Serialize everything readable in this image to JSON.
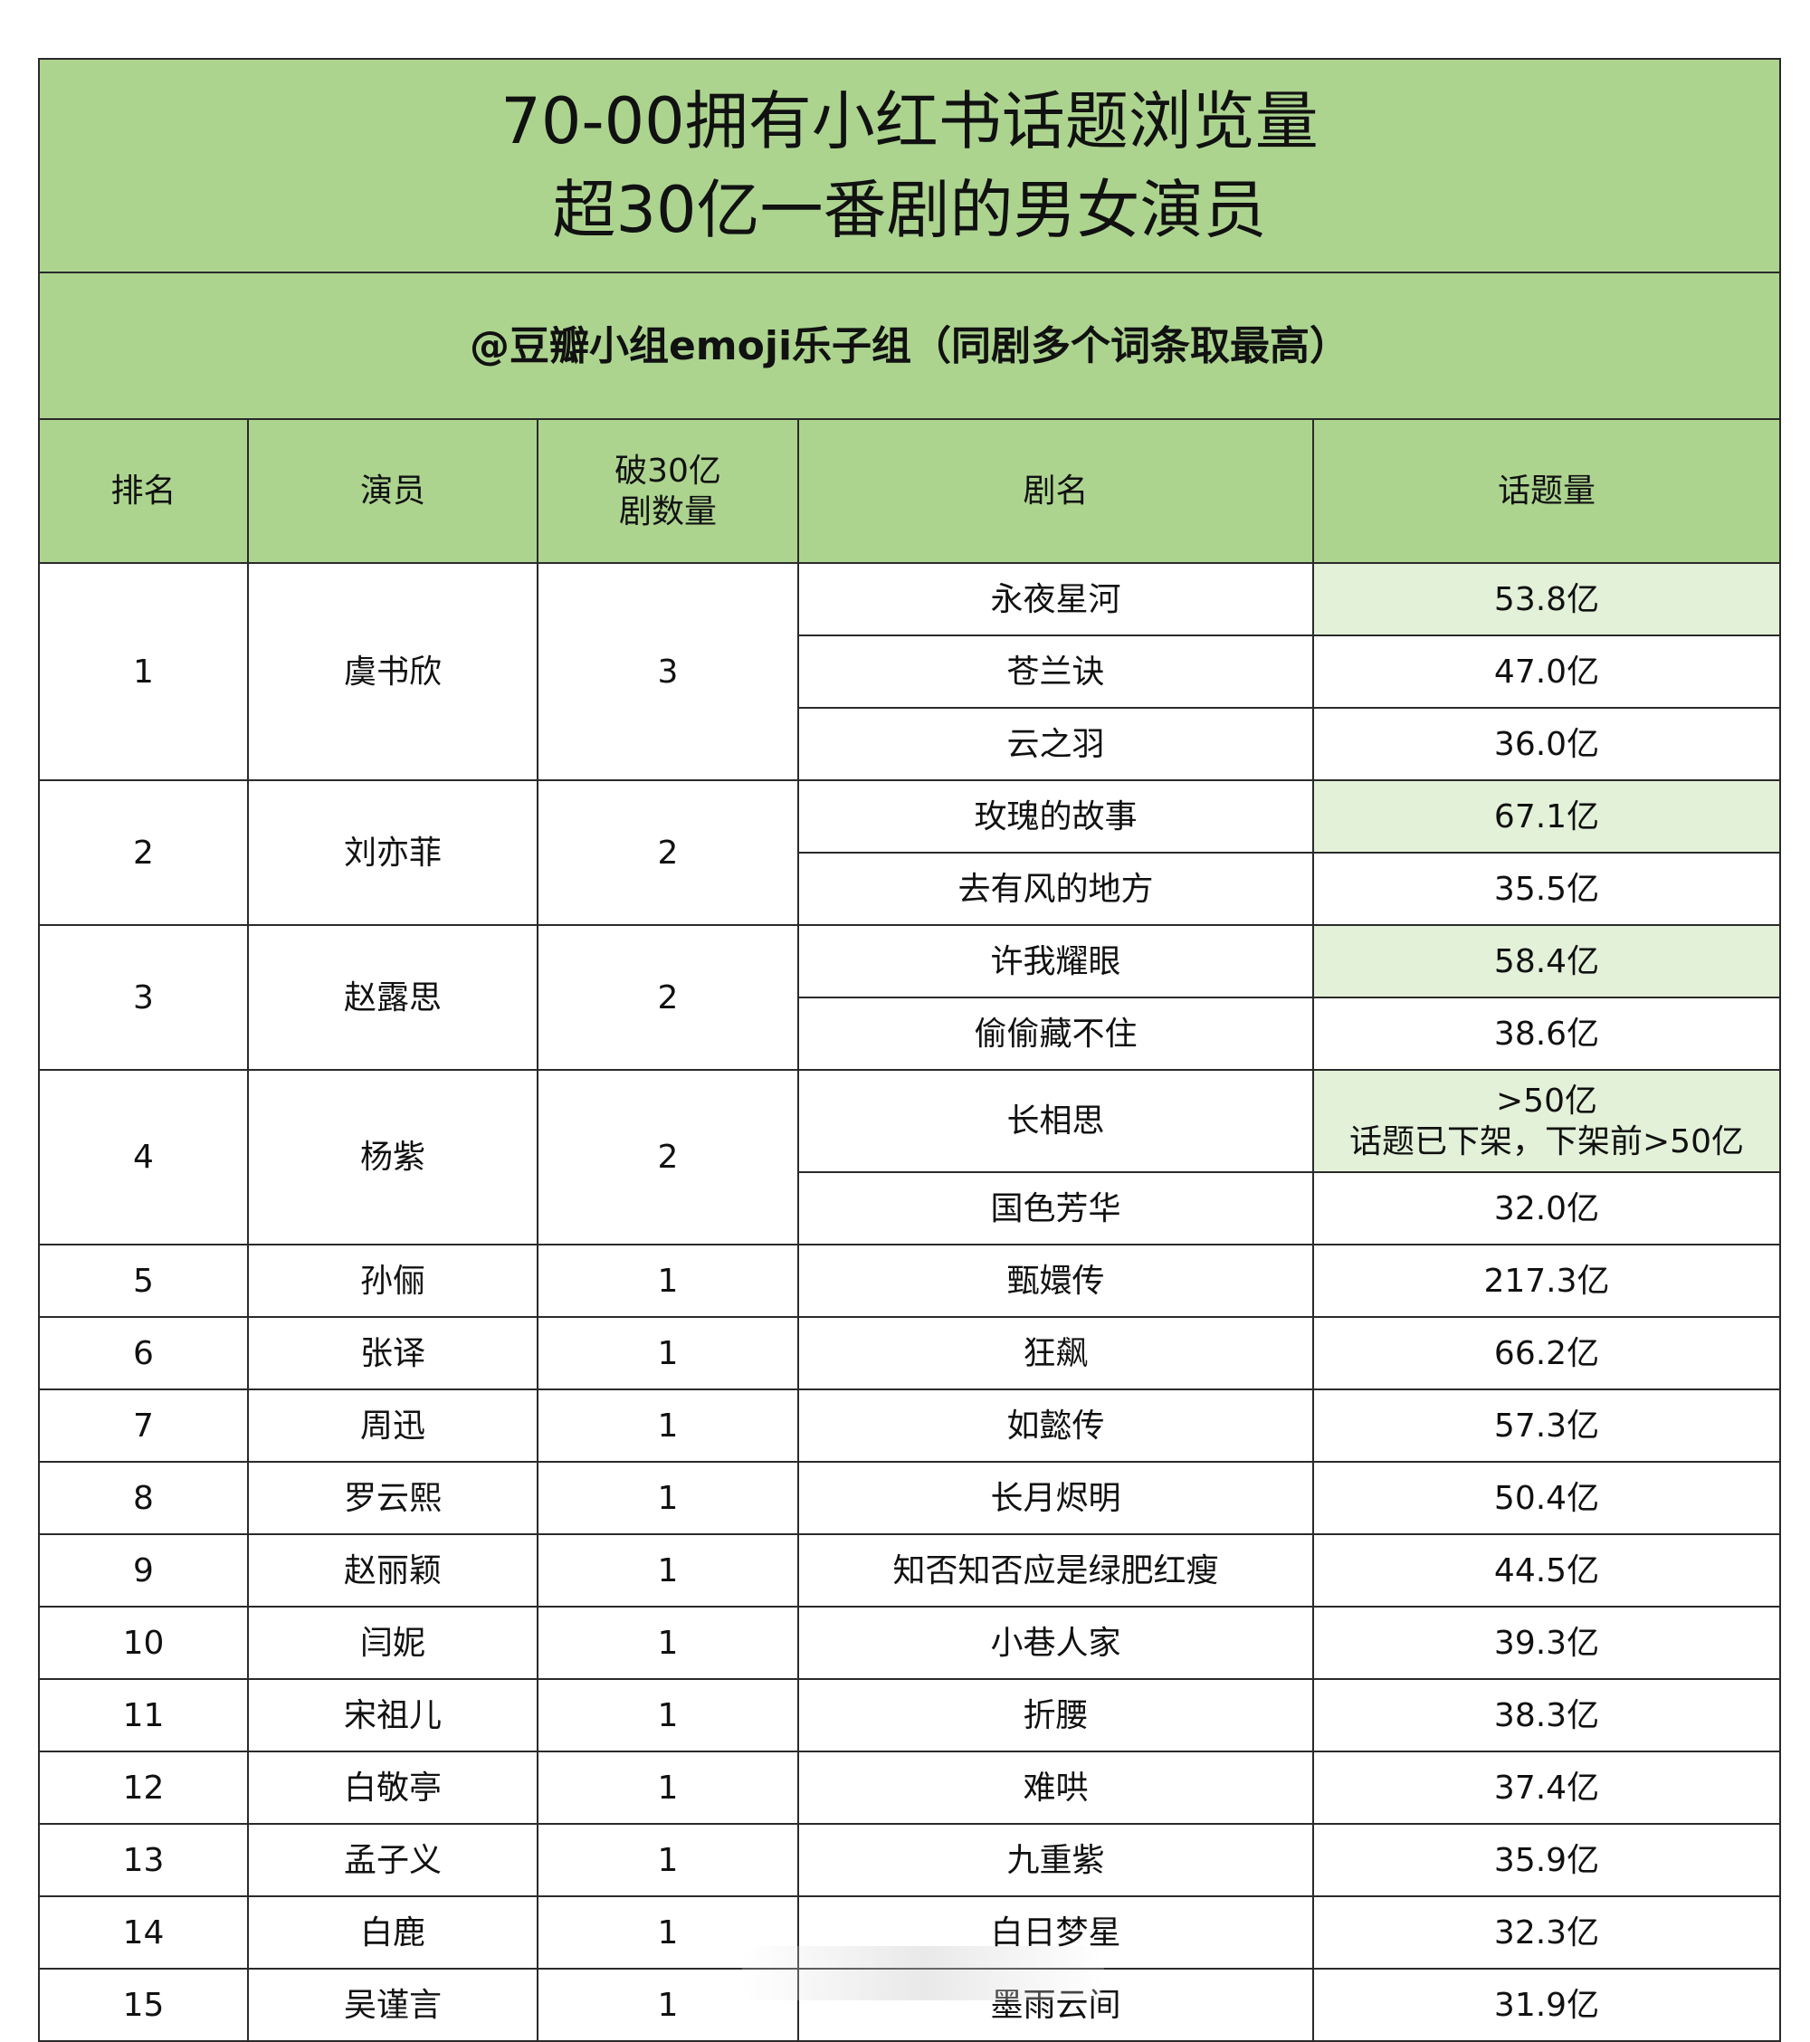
{
  "title_line1": "70-00拥有小红书话题浏览量",
  "title_line2": "超30亿一番剧的男女演员",
  "subtitle": "@豆瓣小组emoji乐子组（同剧多个词条取最高）",
  "colors": {
    "header_green": "#acd48f",
    "highlight": "#e3f1d9"
  },
  "headers": {
    "rank": "排名",
    "actor": "演员",
    "count_line1": "破30亿",
    "count_line2": "剧数量",
    "drama": "剧名",
    "views": "话题量"
  },
  "groups": [
    {
      "rank": "1",
      "actor": "虞书欣",
      "count": "3",
      "dramas": [
        {
          "name": "永夜星河",
          "views": "53.8亿",
          "highlight": true
        },
        {
          "name": "苍兰诀",
          "views": "47.0亿"
        },
        {
          "name": "云之羽",
          "views": "36.0亿"
        }
      ]
    },
    {
      "rank": "2",
      "actor": "刘亦菲",
      "count": "2",
      "dramas": [
        {
          "name": "玫瑰的故事",
          "views": "67.1亿",
          "highlight": true
        },
        {
          "name": "去有风的地方",
          "views": "35.5亿"
        }
      ]
    },
    {
      "rank": "3",
      "actor": "赵露思",
      "count": "2",
      "dramas": [
        {
          "name": "许我耀眼",
          "views": "58.4亿",
          "highlight": true
        },
        {
          "name": "偷偷藏不住",
          "views": "38.6亿"
        }
      ]
    },
    {
      "rank": "4",
      "actor": "杨紫",
      "count": "2",
      "dramas": [
        {
          "name": "长相思",
          "views": ">50亿",
          "note": "话题已下架，下架前>50亿",
          "highlight": true
        },
        {
          "name": "国色芳华",
          "views": "32.0亿"
        }
      ]
    },
    {
      "rank": "5",
      "actor": "孙俪",
      "count": "1",
      "dramas": [
        {
          "name": "甄嬛传",
          "views": "217.3亿"
        }
      ]
    },
    {
      "rank": "6",
      "actor": "张译",
      "count": "1",
      "dramas": [
        {
          "name": "狂飙",
          "views": "66.2亿"
        }
      ]
    },
    {
      "rank": "7",
      "actor": "周迅",
      "count": "1",
      "dramas": [
        {
          "name": "如懿传",
          "views": "57.3亿"
        }
      ]
    },
    {
      "rank": "8",
      "actor": "罗云熙",
      "count": "1",
      "dramas": [
        {
          "name": "长月烬明",
          "views": "50.4亿"
        }
      ]
    },
    {
      "rank": "9",
      "actor": "赵丽颖",
      "count": "1",
      "dramas": [
        {
          "name": "知否知否应是绿肥红瘦",
          "views": "44.5亿"
        }
      ]
    },
    {
      "rank": "10",
      "actor": "闫妮",
      "count": "1",
      "dramas": [
        {
          "name": "小巷人家",
          "views": "39.3亿"
        }
      ]
    },
    {
      "rank": "11",
      "actor": "宋祖儿",
      "count": "1",
      "dramas": [
        {
          "name": "折腰",
          "views": "38.3亿"
        }
      ]
    },
    {
      "rank": "12",
      "actor": "白敬亭",
      "count": "1",
      "dramas": [
        {
          "name": "难哄",
          "views": "37.4亿"
        }
      ]
    },
    {
      "rank": "13",
      "actor": "孟子义",
      "count": "1",
      "dramas": [
        {
          "name": "九重紫",
          "views": "35.9亿"
        }
      ]
    },
    {
      "rank": "14",
      "actor": "白鹿",
      "count": "1",
      "dramas": [
        {
          "name": "白日梦星",
          "views": "32.3亿"
        }
      ]
    },
    {
      "rank": "15",
      "actor": "吴谨言",
      "count": "1",
      "dramas": [
        {
          "name": "墨雨云间",
          "views": "31.9亿"
        }
      ]
    }
  ]
}
